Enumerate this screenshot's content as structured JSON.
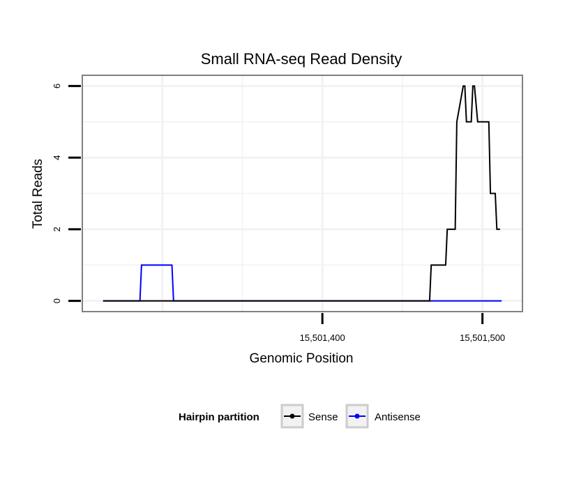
{
  "chart_data": {
    "type": "line",
    "title": "Small RNA-seq Read Density",
    "xlabel": "Genomic Position",
    "ylabel": "Total Reads",
    "xlim": [
      15501250,
      15501525
    ],
    "ylim": [
      -0.3,
      6.3
    ],
    "x_ticks": [
      15501400,
      15501500
    ],
    "x_tick_labels": [
      "15,501,400",
      "15,501,500"
    ],
    "y_ticks": [
      0,
      2,
      4,
      6
    ],
    "y_tick_labels": [
      "0",
      "2",
      "4",
      "6"
    ],
    "grid": true,
    "legend_position": "bottom",
    "legend_title": "Hairpin partition",
    "series": [
      {
        "name": "Sense",
        "color": "#000000",
        "x": [
          15501263,
          15501467,
          15501468,
          15501477,
          15501478,
          15501483,
          15501484,
          15501488,
          15501489,
          15501490,
          15501493,
          15501494,
          15501495,
          15501497,
          15501498,
          15501504,
          15501505,
          15501508,
          15501509,
          15501511
        ],
        "y": [
          0,
          0,
          1,
          1,
          2,
          2,
          5,
          6,
          6,
          5,
          5,
          6,
          6,
          5,
          5,
          5,
          3,
          3,
          2,
          2
        ]
      },
      {
        "name": "Antisense",
        "color": "#0000ff",
        "x": [
          15501263,
          15501286,
          15501287,
          15501306,
          15501307,
          15501512
        ],
        "y": [
          0,
          0,
          1,
          1,
          0,
          0
        ]
      }
    ]
  }
}
